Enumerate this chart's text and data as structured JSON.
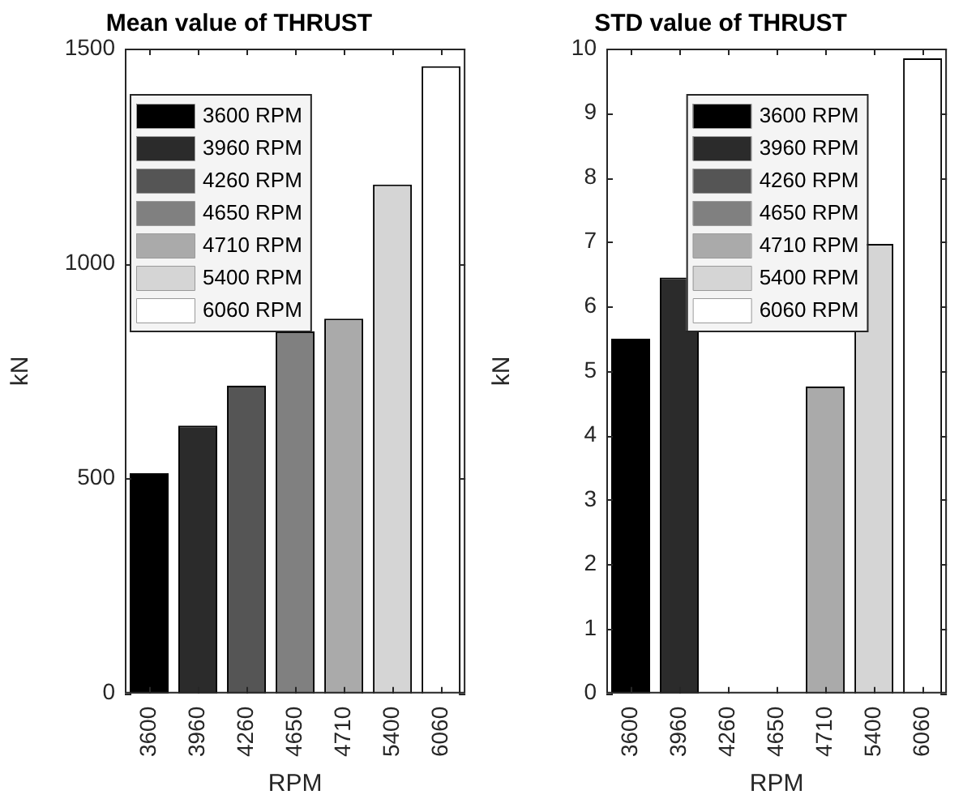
{
  "chart_data": [
    {
      "type": "bar",
      "title": "Mean value of THRUST",
      "xlabel": "RPM",
      "ylabel": "kN",
      "categories": [
        "3600",
        "3960",
        "4260",
        "4650",
        "4710",
        "5400",
        "6060"
      ],
      "ylim": [
        0,
        1500
      ],
      "yticks": [
        0,
        500,
        1000,
        1500
      ],
      "legend": "top left",
      "series": [
        {
          "name": "3600 RPM",
          "color": "#000000",
          "values": [
            512,
            null,
            null,
            null,
            null,
            null,
            null
          ]
        },
        {
          "name": "3960 RPM",
          "color": "#2b2b2b",
          "values": [
            null,
            623,
            null,
            null,
            null,
            null,
            null
          ]
        },
        {
          "name": "4260 RPM",
          "color": "#555555",
          "values": [
            null,
            null,
            716,
            null,
            null,
            null,
            null
          ]
        },
        {
          "name": "4650 RPM",
          "color": "#808080",
          "values": [
            null,
            null,
            null,
            842,
            null,
            null,
            null
          ]
        },
        {
          "name": "4710 RPM",
          "color": "#aaaaaa",
          "values": [
            null,
            null,
            null,
            null,
            872,
            null,
            null
          ]
        },
        {
          "name": "5400 RPM",
          "color": "#d5d5d5",
          "values": [
            null,
            null,
            null,
            null,
            null,
            1184,
            null
          ]
        },
        {
          "name": "6060 RPM",
          "color": "#ffffff",
          "values": [
            null,
            null,
            null,
            null,
            null,
            null,
            1459
          ]
        }
      ]
    },
    {
      "type": "bar",
      "title": "STD value of THRUST",
      "xlabel": "RPM",
      "ylabel": "kN",
      "categories": [
        "3600",
        "3960",
        "4260",
        "4650",
        "4710",
        "5400",
        "6060"
      ],
      "ylim": [
        0,
        10
      ],
      "yticks": [
        0,
        1,
        2,
        3,
        4,
        5,
        6,
        7,
        8,
        9,
        10
      ],
      "legend": "top",
      "series": [
        {
          "name": "3600 RPM",
          "color": "#000000",
          "values": [
            5.5,
            null,
            null,
            null,
            null,
            null,
            null
          ]
        },
        {
          "name": "3960 RPM",
          "color": "#2b2b2b",
          "values": [
            null,
            6.45,
            null,
            null,
            null,
            null,
            null
          ]
        },
        {
          "name": "4260 RPM",
          "color": "#555555",
          "values": [
            null,
            null,
            null,
            null,
            null,
            null,
            null
          ]
        },
        {
          "name": "4650 RPM",
          "color": "#808080",
          "values": [
            null,
            null,
            null,
            null,
            null,
            null,
            null
          ]
        },
        {
          "name": "4710 RPM",
          "color": "#aaaaaa",
          "values": [
            null,
            null,
            null,
            null,
            4.76,
            null,
            null
          ]
        },
        {
          "name": "5400 RPM",
          "color": "#d5d5d5",
          "values": [
            null,
            null,
            null,
            null,
            null,
            6.97,
            null
          ]
        },
        {
          "name": "6060 RPM",
          "color": "#ffffff",
          "values": [
            null,
            null,
            null,
            null,
            null,
            null,
            9.85
          ]
        }
      ]
    }
  ]
}
